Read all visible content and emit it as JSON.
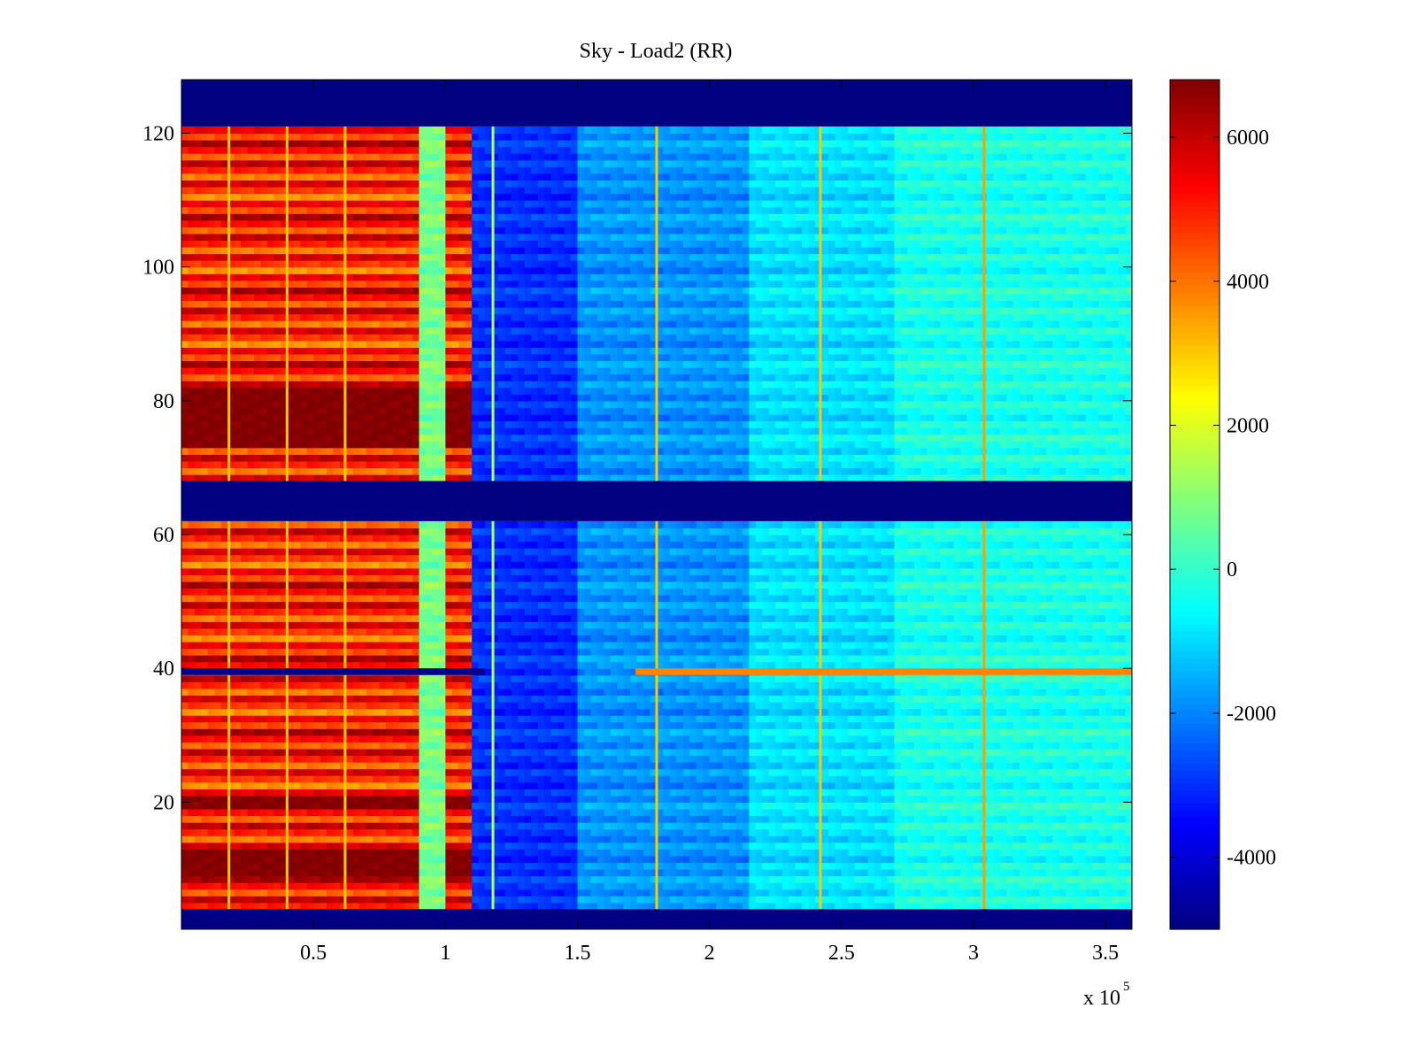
{
  "chart_data": {
    "type": "heatmap",
    "title": "Sky - Load2 (RR)",
    "xlabel": "",
    "ylabel": "",
    "xlim": [
      0,
      360000
    ],
    "ylim": [
      1,
      128
    ],
    "x_ticks": [
      {
        "value": 50000,
        "label": "0.5"
      },
      {
        "value": 100000,
        "label": "1"
      },
      {
        "value": 150000,
        "label": "1.5"
      },
      {
        "value": 200000,
        "label": "2"
      },
      {
        "value": 250000,
        "label": "2.5"
      },
      {
        "value": 300000,
        "label": "3"
      },
      {
        "value": 350000,
        "label": "3.5"
      }
    ],
    "x_exponent": {
      "base": "x 10",
      "power": "5"
    },
    "y_ticks": [
      {
        "value": 20,
        "label": "20"
      },
      {
        "value": 40,
        "label": "40"
      },
      {
        "value": 60,
        "label": "60"
      },
      {
        "value": 80,
        "label": "80"
      },
      {
        "value": 100,
        "label": "100"
      },
      {
        "value": 120,
        "label": "120"
      }
    ],
    "colormap": "jet",
    "clim": [
      -5000,
      6800
    ],
    "colorbar_ticks": [
      {
        "value": -4000,
        "label": "-4000"
      },
      {
        "value": -2000,
        "label": "-2000"
      },
      {
        "value": 0,
        "label": "0"
      },
      {
        "value": 2000,
        "label": "2000"
      },
      {
        "value": 4000,
        "label": "4000"
      },
      {
        "value": 6000,
        "label": "6000"
      }
    ],
    "masked_bands": [
      {
        "y_from": 121,
        "y_to": 128,
        "value": -5000
      },
      {
        "y_from": 62,
        "y_to": 68,
        "value": -5000
      },
      {
        "y_from": 1,
        "y_to": 4,
        "value": -5000
      }
    ],
    "x_zones": [
      {
        "x_from": 0,
        "x_to": 89000,
        "value": 5000
      },
      {
        "x_from": 89000,
        "x_to": 100000,
        "value": 800
      },
      {
        "x_from": 100000,
        "x_to": 110000,
        "value": 5000
      },
      {
        "x_from": 110000,
        "x_to": 150000,
        "value": -3000
      },
      {
        "x_from": 150000,
        "x_to": 215000,
        "value": -1800
      },
      {
        "x_from": 215000,
        "x_to": 270000,
        "value": -900
      },
      {
        "x_from": 270000,
        "x_to": 360000,
        "value": -300
      }
    ],
    "hot_rows": [
      {
        "y_from": 73,
        "y_to": 82,
        "value": 6800
      },
      {
        "y_from": 19,
        "y_to": 21,
        "value": 6800
      },
      {
        "y_from": 9,
        "y_to": 13,
        "value": 6800
      }
    ],
    "bad_row": {
      "y": 39,
      "low_value": -4900,
      "high_value": 3800
    },
    "vertical_lines": [
      {
        "x": 18000,
        "value": 3000
      },
      {
        "x": 40000,
        "value": 3000
      },
      {
        "x": 62000,
        "value": 3000
      },
      {
        "x": 118000,
        "value": 1500
      },
      {
        "x": 180000,
        "value": 3000
      },
      {
        "x": 242000,
        "value": 3000
      },
      {
        "x": 304000,
        "value": 3500
      }
    ]
  }
}
